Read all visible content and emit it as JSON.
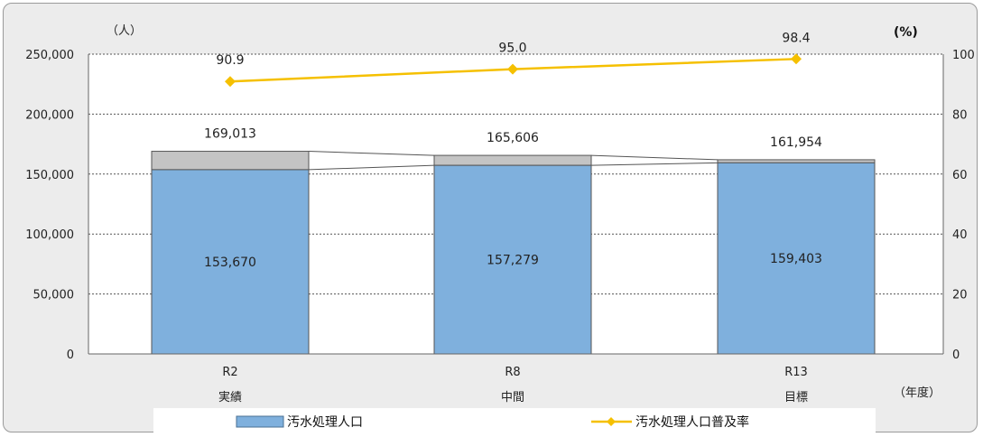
{
  "chart_data": {
    "type": "bar+line",
    "y_left_unit": "（人）",
    "y_right_unit": "(%)",
    "x_unit": "（年度）",
    "y_left_ticks": [
      "0",
      "50,000",
      "100,000",
      "150,000",
      "200,000",
      "250,000"
    ],
    "y_right_ticks": [
      "0",
      "20",
      "40",
      "60",
      "80",
      "100"
    ],
    "ylim_left": [
      0,
      250000
    ],
    "ylim_right": [
      0,
      100
    ],
    "categories": [
      "R2",
      "R8",
      "R13"
    ],
    "category_sublabels": [
      "実績",
      "中間",
      "目標"
    ],
    "series": [
      {
        "name": "汚水処理人口",
        "kind": "bar",
        "axis": "left",
        "values": [
          153670,
          157279,
          159403
        ],
        "labels": [
          "153,670",
          "157,279",
          "159,403"
        ],
        "color": "#7fb0dd"
      },
      {
        "kind": "bar-total",
        "axis": "left",
        "values": [
          169013,
          165606,
          161954
        ],
        "labels": [
          "169,013",
          "165,606",
          "161,954"
        ],
        "color": "#c4c4c4"
      },
      {
        "name": "汚水処理人口普及率",
        "kind": "line",
        "axis": "right",
        "values": [
          90.9,
          95.0,
          98.4
        ],
        "labels": [
          "90.9",
          "95.0",
          "98.4"
        ],
        "color": "#f5c000"
      }
    ],
    "grid": true,
    "legend_position": "bottom"
  }
}
